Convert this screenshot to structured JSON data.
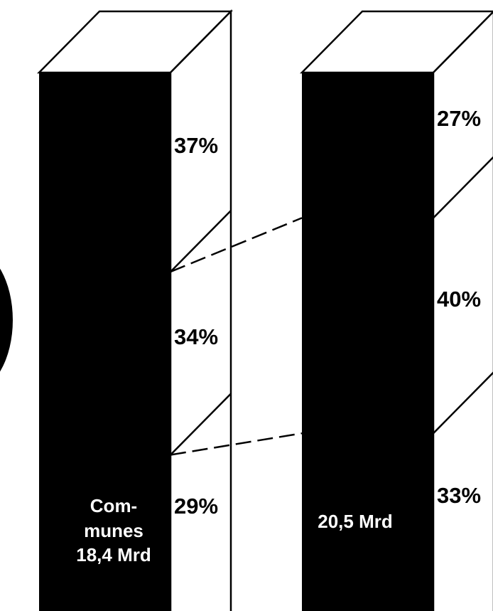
{
  "chart_data": {
    "type": "bar",
    "stacked": true,
    "style": "3d-columns",
    "colors": {
      "front": "#000000",
      "side": "#ffffff",
      "outline": "#000000"
    },
    "columns": [
      {
        "label_lines": [
          "Com-",
          "munes",
          "18,4 Mrd"
        ],
        "total": 18.4,
        "segments": [
          {
            "value": 37,
            "label": "37%"
          },
          {
            "value": 34,
            "label": "34%"
          },
          {
            "value": 29,
            "label": "29%"
          }
        ]
      },
      {
        "label_lines": [
          "20,5 Mrd"
        ],
        "total": 20.5,
        "segments": [
          {
            "value": 27,
            "label": "27%"
          },
          {
            "value": 40,
            "label": "40%"
          },
          {
            "value": 33,
            "label": "33%"
          }
        ]
      }
    ]
  }
}
